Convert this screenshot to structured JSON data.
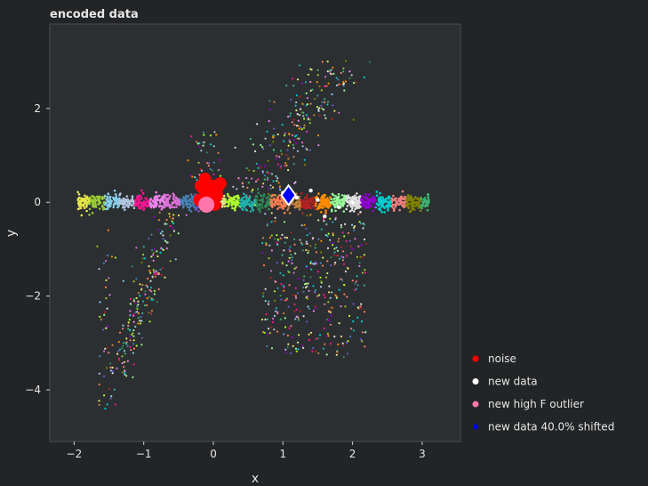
{
  "chart_data": {
    "type": "scatter",
    "title": "encoded data",
    "xlabel": "x",
    "ylabel": "y",
    "xlim": [
      -2.35,
      3.55
    ],
    "ylim": [
      -5.1,
      3.8
    ],
    "xticks": [
      -2,
      -1,
      0,
      1,
      2,
      3
    ],
    "yticks": [
      -4,
      -2,
      0,
      2
    ],
    "grid": false,
    "legend_position": "lower-right",
    "background": "#2c2f31",
    "legend": [
      {
        "label": "noise",
        "color": "#ff0000",
        "marker": "circle"
      },
      {
        "label": "new data",
        "color": "#ffffff",
        "marker": "circle"
      },
      {
        "label": "new high F outlier",
        "color": "#ff77aa",
        "marker": "circle"
      },
      {
        "label": "new data 40.0% shifted",
        "color": "#0000ff",
        "marker": "diamond"
      }
    ],
    "cluster_colors": [
      "#e8e84a",
      "#9acd32",
      "#87ceeb",
      "#b0c4de",
      "#ff1493",
      "#ee82ee",
      "#da70d6",
      "#4682b4",
      "#6a5acd",
      "#f0e68c",
      "#adff2f",
      "#20b2aa",
      "#2e8b57",
      "#ff7f50",
      "#cd853f",
      "#b22222",
      "#ff8c00",
      "#98fb98",
      "#e0e0e0",
      "#9400d3",
      "#00ced1",
      "#f08080",
      "#808000",
      "#3cb371"
    ],
    "series": [
      {
        "name": "noise",
        "color": "#ff0000",
        "points": [
          [
            -0.15,
            0.3
          ],
          [
            -0.1,
            0.1
          ],
          [
            -0.05,
            0.25
          ],
          [
            0.0,
            0.35
          ],
          [
            0.05,
            0.15
          ],
          [
            -0.2,
            0.05
          ],
          [
            0.1,
            0.4
          ],
          [
            -0.12,
            0.5
          ],
          [
            0.02,
            -0.05
          ],
          [
            -0.08,
            0.2
          ],
          [
            0.06,
            0.3
          ],
          [
            -0.18,
            0.35
          ]
        ]
      },
      {
        "name": "new data",
        "color": "#ffffff",
        "points": [
          [
            1.2,
            0.1
          ],
          [
            1.5,
            0.05
          ],
          [
            1.8,
            -0.1
          ],
          [
            2.0,
            0.0
          ],
          [
            1.0,
            0.2
          ],
          [
            1.6,
            -0.3
          ],
          [
            1.4,
            0.25
          ]
        ]
      },
      {
        "name": "new high F outlier",
        "color": "#ff77aa",
        "points": [
          [
            -0.1,
            -0.05
          ]
        ]
      },
      {
        "name": "new data 40.0% shifted",
        "color": "#0000ff",
        "points": [
          [
            1.08,
            0.15
          ]
        ]
      }
    ]
  }
}
